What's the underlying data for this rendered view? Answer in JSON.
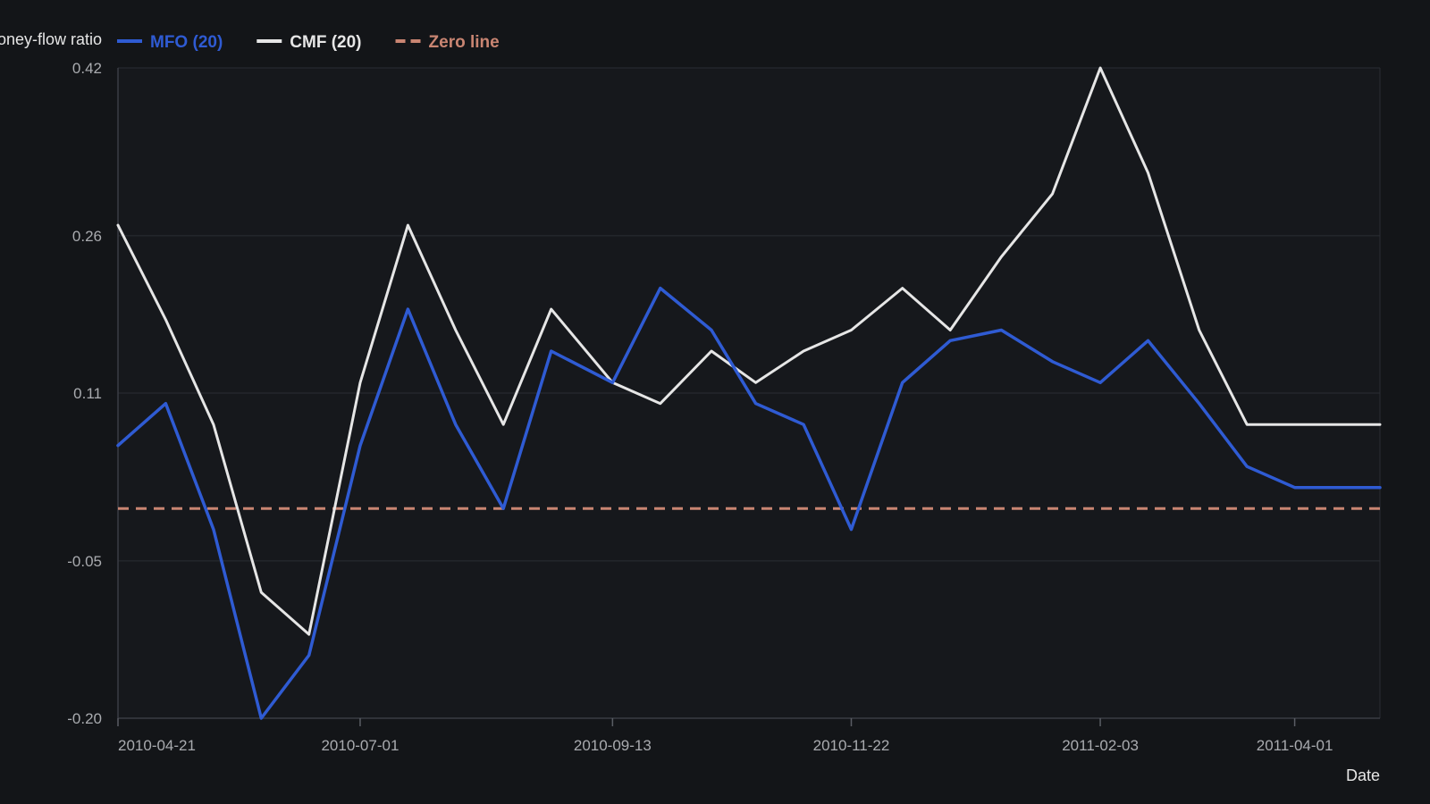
{
  "chart_data": {
    "type": "line",
    "ylabel": "Money-flow ratio",
    "xlabel": "Date",
    "ylim": [
      -0.2,
      0.42
    ],
    "yticks": [
      0.42,
      0.26,
      0.11,
      -0.05,
      -0.2
    ],
    "ytick_labels": [
      "0.42",
      "0.26",
      "0.11",
      "-0.05",
      "-0.20"
    ],
    "xlim": [
      "2010-04-21",
      "2011-04-26"
    ],
    "xticks": [
      {
        "date": "2010-04-21",
        "label": "2010-04-21"
      },
      {
        "date": "2010-07-01",
        "label": "2010-07-01"
      },
      {
        "date": "2010-09-13",
        "label": "2010-09-13"
      },
      {
        "date": "2010-11-22",
        "label": "2010-11-22"
      },
      {
        "date": "2011-02-03",
        "label": "2011-02-03"
      },
      {
        "date": "2011-04-01",
        "label": "2011-04-01"
      }
    ],
    "grid": true,
    "legend_position": "top-left",
    "x": [
      "2010-04-21",
      "2010-05-05",
      "2010-05-19",
      "2010-06-02",
      "2010-06-16",
      "2010-07-01",
      "2010-07-15",
      "2010-07-29",
      "2010-08-12",
      "2010-08-26",
      "2010-09-13",
      "2010-09-27",
      "2010-10-12",
      "2010-10-25",
      "2010-11-08",
      "2010-11-22",
      "2010-12-07",
      "2010-12-21",
      "2011-01-05",
      "2011-01-20",
      "2011-02-03",
      "2011-02-17",
      "2011-03-04",
      "2011-03-18",
      "2011-04-01",
      "2011-04-26"
    ],
    "series": [
      {
        "name": "MFO (20)",
        "color": "#2f5bd3",
        "dash": false,
        "values": [
          0.06,
          0.1,
          -0.02,
          -0.2,
          -0.14,
          0.06,
          0.19,
          0.08,
          0.0,
          0.15,
          0.12,
          0.21,
          0.17,
          0.1,
          0.08,
          -0.02,
          0.12,
          0.16,
          0.17,
          0.14,
          0.12,
          0.16,
          0.1,
          0.04,
          0.02,
          0.02
        ]
      },
      {
        "name": "CMF (20)",
        "color": "#e6e6e6",
        "dash": false,
        "values": [
          0.27,
          0.18,
          0.08,
          -0.08,
          -0.12,
          0.12,
          0.27,
          0.17,
          0.08,
          0.19,
          0.12,
          0.1,
          0.15,
          0.12,
          0.15,
          0.17,
          0.21,
          0.17,
          0.24,
          0.3,
          0.42,
          0.32,
          0.17,
          0.08,
          0.08,
          0.08
        ]
      },
      {
        "name": "Zero line",
        "color": "#c98572",
        "dash": true,
        "values": [
          0,
          0,
          0,
          0,
          0,
          0,
          0,
          0,
          0,
          0,
          0,
          0,
          0,
          0,
          0,
          0,
          0,
          0,
          0,
          0,
          0,
          0,
          0,
          0,
          0,
          0
        ]
      }
    ],
    "colors": {
      "background": "#131518",
      "plot_background": "#16181c",
      "grid": "#2a2d33",
      "axis_text": "#a9abaf",
      "label_text": "#e6e6e6"
    }
  }
}
